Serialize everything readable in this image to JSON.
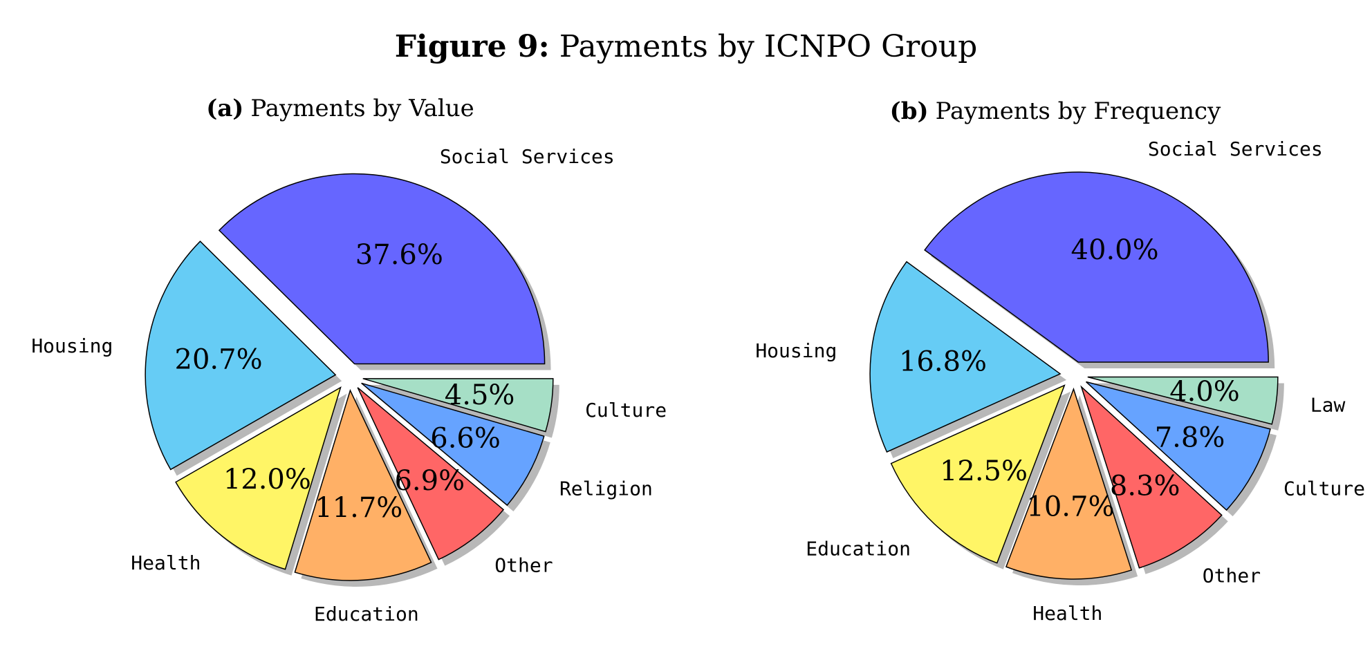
{
  "figure": {
    "title_prefix": "Figure 9:",
    "title": "Payments by ICNPO Group"
  },
  "chart_data": [
    {
      "type": "pie",
      "panel": "(a)",
      "title": "Payments by Value",
      "slices": [
        {
          "label": "Social Services",
          "value": 37.6,
          "display": "37.6%",
          "color": "#6666ff"
        },
        {
          "label": "Housing",
          "value": 20.7,
          "display": "20.7%",
          "color": "#66ccf5"
        },
        {
          "label": "Health",
          "value": 12.0,
          "display": "12.0%",
          "color": "#fff566"
        },
        {
          "label": "Education",
          "value": 11.7,
          "display": "11.7%",
          "color": "#ffb066"
        },
        {
          "label": "Other",
          "value": 6.9,
          "display": "6.9%",
          "color": "#ff6666"
        },
        {
          "label": "Religion",
          "value": 6.6,
          "display": "6.6%",
          "color": "#66a3ff"
        },
        {
          "label": "Culture",
          "value": 4.5,
          "display": "4.5%",
          "color": "#a6dfc6"
        }
      ]
    },
    {
      "type": "pie",
      "panel": "(b)",
      "title": "Payments by Frequency",
      "slices": [
        {
          "label": "Social Services",
          "value": 40.0,
          "display": "40.0%",
          "color": "#6666ff"
        },
        {
          "label": "Housing",
          "value": 16.8,
          "display": "16.8%",
          "color": "#66ccf5"
        },
        {
          "label": "Education",
          "value": 12.5,
          "display": "12.5%",
          "color": "#fff566"
        },
        {
          "label": "Health",
          "value": 10.7,
          "display": "10.7%",
          "color": "#ffb066"
        },
        {
          "label": "Other",
          "value": 8.3,
          "display": "8.3%",
          "color": "#ff6666"
        },
        {
          "label": "Culture",
          "value": 7.8,
          "display": "7.8%",
          "color": "#66a3ff"
        },
        {
          "label": "Law",
          "value": 4.0,
          "display": "4.0%",
          "color": "#a6dfc6"
        }
      ]
    }
  ]
}
